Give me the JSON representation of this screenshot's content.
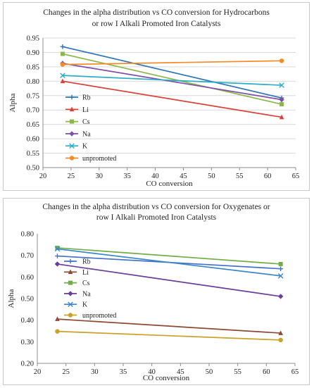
{
  "chart_data": [
    {
      "type": "line",
      "title_lines": [
        "Changes in the alpha distribution vs CO conversion for Hydrocarbons",
        "or row I Alkali Promoted Iron Catalysts"
      ],
      "xlabel": "CO conversion",
      "ylabel": "Alpha",
      "xlim": [
        20,
        65
      ],
      "xticks": [
        "20",
        "25",
        "30",
        "35",
        "40",
        "45",
        "50",
        "55",
        "60",
        "65"
      ],
      "ylim": [
        0.5,
        0.95
      ],
      "yticks": [
        "0.50",
        "0.55",
        "0.60",
        "0.65",
        "0.70",
        "0.75",
        "0.80",
        "0.85",
        "0.90",
        "0.95"
      ],
      "grid": true,
      "legend_position": "left",
      "series": [
        {
          "name": "Rb",
          "color": "#2e75b6",
          "marker": "plus",
          "x": [
            23.5,
            62.5
          ],
          "y": [
            0.92,
            0.742
          ]
        },
        {
          "name": "Li",
          "color": "#d9403a",
          "marker": "triangle",
          "x": [
            23.5,
            62.5
          ],
          "y": [
            0.8,
            0.675
          ]
        },
        {
          "name": "Cs",
          "color": "#8cb84a",
          "marker": "square",
          "x": [
            23.5,
            62.5
          ],
          "y": [
            0.895,
            0.72
          ]
        },
        {
          "name": "Na",
          "color": "#7f4ea8",
          "marker": "diamond",
          "x": [
            23.5,
            62.5
          ],
          "y": [
            0.862,
            0.736
          ]
        },
        {
          "name": "K",
          "color": "#2aaec6",
          "marker": "x",
          "x": [
            23.5,
            62.5
          ],
          "y": [
            0.82,
            0.786
          ]
        },
        {
          "name": "unpromoted",
          "color": "#f28c28",
          "marker": "circle",
          "x": [
            23.5,
            62.5
          ],
          "y": [
            0.858,
            0.871
          ]
        }
      ]
    },
    {
      "type": "line",
      "title_lines": [
        "Changes in the alpha distribution vs CO conversion for Oxygenates or",
        "row I Alkali Promoted Iron Catalysts"
      ],
      "xlabel": "CO conversion",
      "ylabel": "Alpha",
      "xlim": [
        20,
        65
      ],
      "xticks": [
        "20",
        "25",
        "30",
        "35",
        "40",
        "45",
        "50",
        "55",
        "60",
        "65"
      ],
      "ylim": [
        0.2,
        0.8
      ],
      "yticks": [
        "0.20",
        "0.30",
        "0.40",
        "0.50",
        "0.60",
        "0.70",
        "0.80"
      ],
      "grid": false,
      "legend_position": "left",
      "series": [
        {
          "name": "Rb",
          "color": "#4472c4",
          "marker": "plus",
          "x": [
            23.5,
            62.5
          ],
          "y": [
            0.697,
            0.638
          ]
        },
        {
          "name": "Li",
          "color": "#8b4a32",
          "marker": "triangle",
          "x": [
            23.5,
            62.5
          ],
          "y": [
            0.405,
            0.34
          ]
        },
        {
          "name": "Cs",
          "color": "#70ad47",
          "marker": "square",
          "x": [
            23.5,
            62.5
          ],
          "y": [
            0.735,
            0.66
          ]
        },
        {
          "name": "Na",
          "color": "#6a3d9a",
          "marker": "diamond",
          "x": [
            23.5,
            62.5
          ],
          "y": [
            0.66,
            0.51
          ]
        },
        {
          "name": "K",
          "color": "#3a86c8",
          "marker": "x",
          "x": [
            23.5,
            62.5
          ],
          "y": [
            0.73,
            0.605
          ]
        },
        {
          "name": "unpromoted",
          "color": "#c9a227",
          "marker": "circle",
          "x": [
            23.5,
            62.5
          ],
          "y": [
            0.348,
            0.308
          ]
        }
      ]
    }
  ]
}
